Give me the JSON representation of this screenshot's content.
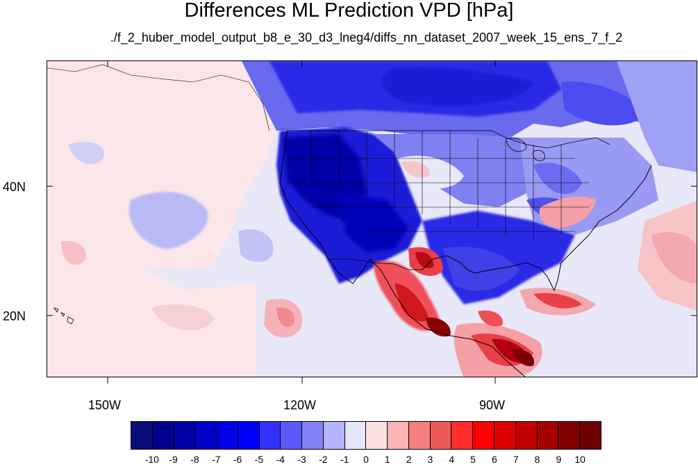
{
  "title": "Differences ML Prediction VPD [hPa]",
  "subtitle": "./f_2_huber_model_output_b8_e_30_d3_lneg4/diffs_nn_dataset_2007_week_15_ens_7_f_2",
  "map": {
    "projection": "cylindrical-equidistant",
    "lon_range": [
      -159,
      -59
    ],
    "lat_range": [
      10.7,
      59.3
    ],
    "x_tick_labels": [
      "150W",
      "120W",
      "90W"
    ],
    "y_tick_labels": [
      "40N",
      "20N"
    ],
    "features": [
      "coastlines",
      "country-borders",
      "us-state-borders",
      "great-lakes"
    ]
  },
  "colorbar": {
    "labels": [
      "-10",
      "-9",
      "-8",
      "-7",
      "-6",
      "-5",
      "-4",
      "-3",
      "-2",
      "-1",
      "0",
      "1",
      "2",
      "3",
      "4",
      "5",
      "6",
      "7",
      "8",
      "9",
      "10"
    ],
    "colors": [
      "#0a0a78",
      "#00008c",
      "#0000a8",
      "#0000c8",
      "#0000e6",
      "#0000ff",
      "#3232ff",
      "#5a5aff",
      "#8282f8",
      "#b4b4ff",
      "#e6e6fa",
      "#fde0e0",
      "#fdb4b4",
      "#f48080",
      "#ec5a5a",
      "#ff2d2d",
      "#ff0000",
      "#dc0000",
      "#c00000",
      "#a40000",
      "#820000",
      "#6a0000"
    ]
  }
}
